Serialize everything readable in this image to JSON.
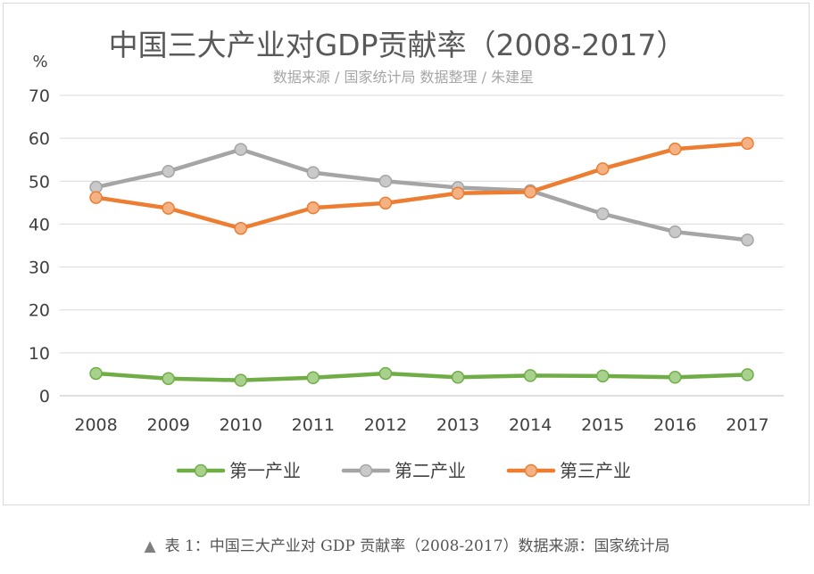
{
  "chart_data": {
    "type": "line",
    "title": "中国三大产业对GDP贡献率（2008-2017）",
    "subtitle": "数据来源 / 国家统计局 数据整理 / 朱建星",
    "ylabel": "%",
    "xlabel": "",
    "ylim": [
      0,
      70
    ],
    "yticks": [
      0,
      10,
      20,
      30,
      40,
      50,
      60,
      70
    ],
    "grid": true,
    "legend_position": "bottom",
    "categories": [
      "2008",
      "2009",
      "2010",
      "2011",
      "2012",
      "2013",
      "2014",
      "2015",
      "2016",
      "2017"
    ],
    "series": [
      {
        "name": "第一产业",
        "color": "#70ad47",
        "marker_fill": "#a9d18e",
        "values": [
          5.2,
          4.0,
          3.6,
          4.2,
          5.2,
          4.3,
          4.7,
          4.6,
          4.3,
          4.9
        ]
      },
      {
        "name": "第二产业",
        "color": "#a5a5a5",
        "marker_fill": "#c9c9c9",
        "values": [
          48.6,
          52.3,
          57.4,
          52.0,
          50.0,
          48.5,
          47.8,
          42.4,
          38.2,
          36.3
        ]
      },
      {
        "name": "第三产业",
        "color": "#ed7d31",
        "marker_fill": "#f4b183",
        "values": [
          46.2,
          43.7,
          39.0,
          43.8,
          44.9,
          47.2,
          47.5,
          52.9,
          57.5,
          58.8
        ]
      }
    ]
  },
  "caption": {
    "marker": "▲",
    "text": "表 1：中国三大产业对 GDP 贡献率（2008-2017）数据来源：国家统计局"
  }
}
